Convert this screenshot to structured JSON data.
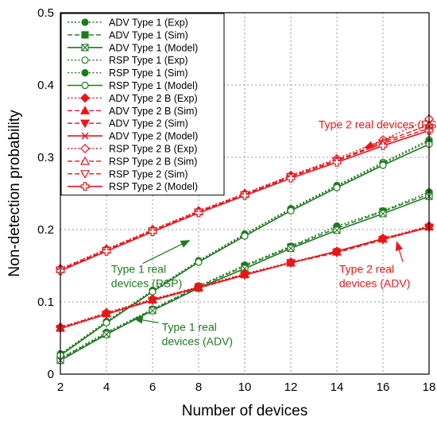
{
  "chart_data": {
    "type": "line",
    "xlabel": "Number of devices",
    "ylabel": "Non-detection probability",
    "xlim": [
      2,
      18
    ],
    "ylim": [
      0,
      0.5
    ],
    "xticks": [
      2,
      4,
      6,
      8,
      10,
      12,
      14,
      16,
      18
    ],
    "yticks": [
      0,
      0.1,
      0.2,
      0.3,
      0.4,
      0.5
    ],
    "ytick_labels": [
      "0",
      "0.1",
      "0.2",
      "0.3",
      "0.4",
      "0.5"
    ],
    "grid": true,
    "legend_position": "top-left",
    "x": [
      2,
      4,
      6,
      8,
      10,
      12,
      14,
      16,
      18
    ],
    "series": [
      {
        "name": "ADV  Type 1 (Exp)",
        "color": "#1f7a1f",
        "dash": "dot",
        "marker": "circle-filled",
        "values": [
          0.022,
          0.058,
          0.09,
          0.122,
          0.151,
          0.177,
          0.205,
          0.226,
          0.252
        ]
      },
      {
        "name": "ADV  Type 1 (Sim)",
        "color": "#1f7a1f",
        "dash": "dash",
        "marker": "square-filled",
        "values": [
          0.021,
          0.056,
          0.089,
          0.121,
          0.149,
          0.176,
          0.202,
          0.225,
          0.249
        ]
      },
      {
        "name": "ADV  Type 1 (Model)",
        "color": "#1f7a1f",
        "dash": "solid",
        "marker": "square-x",
        "values": [
          0.019,
          0.055,
          0.088,
          0.119,
          0.146,
          0.174,
          0.199,
          0.222,
          0.246
        ]
      },
      {
        "name": "RSP Type 1 (Exp)",
        "color": "#1f7a1f",
        "dash": "dot",
        "marker": "circle-open",
        "values": [
          0.028,
          0.073,
          0.116,
          0.157,
          0.194,
          0.229,
          0.261,
          0.293,
          0.324
        ]
      },
      {
        "name": "RSP Type 1 (Sim)",
        "color": "#1f7a1f",
        "dash": "dot",
        "marker": "circle-filled",
        "values": [
          0.027,
          0.072,
          0.115,
          0.156,
          0.193,
          0.228,
          0.26,
          0.291,
          0.322
        ]
      },
      {
        "name": "RSP Type 1 (Model)",
        "color": "#1f7a1f",
        "dash": "solid",
        "marker": "circle-open",
        "values": [
          0.026,
          0.071,
          0.114,
          0.155,
          0.191,
          0.226,
          0.258,
          0.289,
          0.318
        ]
      },
      {
        "name": "ADV  Type 2 B (Exp)",
        "color": "#e8161b",
        "dash": "dot",
        "marker": "diamond-filled",
        "values": [
          0.065,
          0.085,
          0.104,
          0.121,
          0.139,
          0.155,
          0.17,
          0.188,
          0.205
        ]
      },
      {
        "name": "ADV  Type 2 B (Sim)",
        "color": "#e8161b",
        "dash": "dash",
        "marker": "triangle-filled",
        "values": [
          0.064,
          0.084,
          0.103,
          0.12,
          0.138,
          0.154,
          0.169,
          0.187,
          0.204
        ]
      },
      {
        "name": "ADV  Type 2 (Sim)",
        "color": "#e8161b",
        "dash": "dash",
        "marker": "triangle-down-filled",
        "values": [
          0.063,
          0.083,
          0.102,
          0.119,
          0.137,
          0.154,
          0.168,
          0.186,
          0.203
        ]
      },
      {
        "name": "ADV  Type 2  (Model)",
        "color": "#e8161b",
        "dash": "solid",
        "marker": "x",
        "values": [
          0.063,
          0.083,
          0.102,
          0.12,
          0.137,
          0.154,
          0.17,
          0.187,
          0.203
        ]
      },
      {
        "name": "RSP Type 2 B (Exp)",
        "color": "#e8161b",
        "dash": "dot",
        "marker": "diamond-open",
        "values": [
          0.146,
          0.173,
          0.2,
          0.226,
          0.25,
          0.275,
          0.298,
          0.324,
          0.353
        ]
      },
      {
        "name": "RSP Type 2 B (Sim)",
        "color": "#e8161b",
        "dash": "dash",
        "marker": "triangle-open",
        "values": [
          0.145,
          0.172,
          0.199,
          0.225,
          0.249,
          0.274,
          0.296,
          0.321,
          0.345
        ]
      },
      {
        "name": "RSP Type 2 (Sim)",
        "color": "#e8161b",
        "dash": "dash",
        "marker": "triangle-down-open",
        "values": [
          0.144,
          0.171,
          0.198,
          0.224,
          0.248,
          0.273,
          0.295,
          0.319,
          0.34
        ]
      },
      {
        "name": "RSP Type 2 (Model)",
        "color": "#e8161b",
        "dash": "solid",
        "marker": "plus-open",
        "values": [
          0.143,
          0.17,
          0.197,
          0.223,
          0.247,
          0.271,
          0.293,
          0.316,
          0.337
        ]
      }
    ],
    "annotations": [
      {
        "lines": [
          "Type 2  real devices (RSP)"
        ],
        "color": "#e8161b",
        "text_at": [
          13.2,
          0.34
        ],
        "arrow_to": [
          15.2,
          0.313
        ]
      },
      {
        "lines": [
          "Type 1 real",
          "devices (RSP)"
        ],
        "color": "#1f7a1f",
        "text_at": [
          4.2,
          0.14
        ],
        "arrow_to": [
          7.6,
          0.185
        ]
      },
      {
        "lines": [
          "Type 2 real",
          "devices (ADV)"
        ],
        "color": "#e8161b",
        "text_at": [
          14.1,
          0.14
        ],
        "arrow_to": [
          16.6,
          0.183
        ]
      },
      {
        "lines": [
          "Type 1 real",
          "devices (ADV)"
        ],
        "color": "#1f7a1f",
        "text_at": [
          6.4,
          0.06
        ],
        "arrow_to": [
          5.2,
          0.077
        ]
      }
    ]
  }
}
